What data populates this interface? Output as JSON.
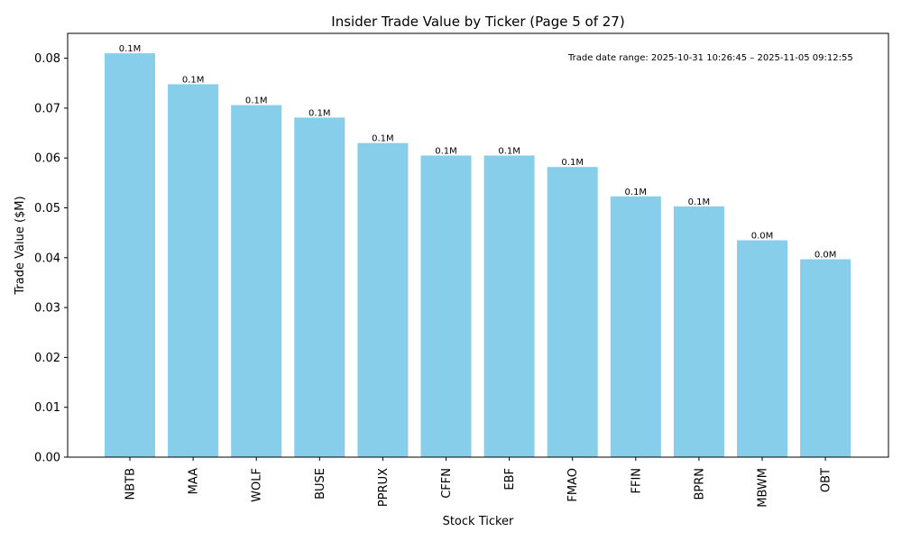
{
  "chart_data": {
    "type": "bar",
    "title": "Insider Trade Value by Ticker (Page 5 of 27)",
    "xlabel": "Stock Ticker",
    "ylabel": "Trade Value ($M)",
    "categories": [
      "NBTB",
      "MAA",
      "WOLF",
      "BUSE",
      "PPRUX",
      "CFFN",
      "EBF",
      "FMAO",
      "FFIN",
      "BPRN",
      "MBWM",
      "OBT"
    ],
    "values": [
      0.081,
      0.0748,
      0.0706,
      0.0681,
      0.063,
      0.0605,
      0.0605,
      0.0582,
      0.0523,
      0.0503,
      0.0435,
      0.0397
    ],
    "data_labels": [
      "0.1M",
      "0.1M",
      "0.1M",
      "0.1M",
      "0.1M",
      "0.1M",
      "0.1M",
      "0.1M",
      "0.1M",
      "0.1M",
      "0.0M",
      "0.0M"
    ],
    "yticks": [
      0.0,
      0.01,
      0.02,
      0.03,
      0.04,
      0.05,
      0.06,
      0.07,
      0.08
    ],
    "ytick_labels": [
      "0.00",
      "0.01",
      "0.02",
      "0.03",
      "0.04",
      "0.05",
      "0.06",
      "0.07",
      "0.08"
    ],
    "ylim": [
      0,
      0.085
    ],
    "bar_color": "#87CEEB",
    "grid": false,
    "annotation": "Trade date range: 2025-10-31 10:26:45 – 2025-11-05 09:12:55"
  }
}
